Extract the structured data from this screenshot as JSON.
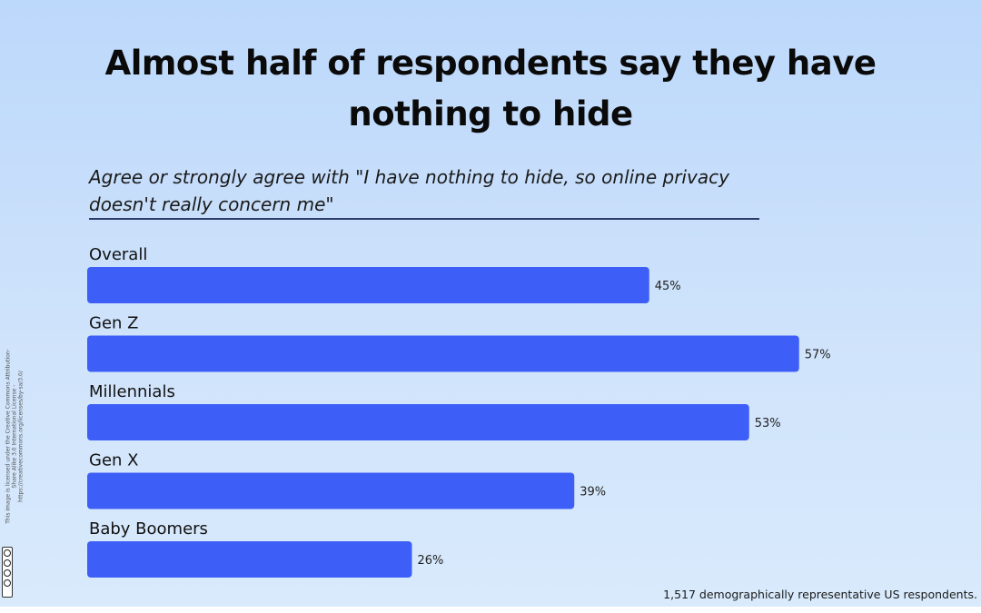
{
  "chart_data": {
    "type": "bar",
    "orientation": "horizontal",
    "title": "Almost half of respondents say they have nothing to hide",
    "subtitle": "Agree or strongly agree with \"I have nothing to hide, so online privacy doesn't really concern me\"",
    "categories": [
      "Overall",
      "Gen Z",
      "Millennials",
      "Gen X",
      "Baby Boomers"
    ],
    "values": [
      45,
      57,
      53,
      39,
      26
    ],
    "value_labels": [
      "45%",
      "57%",
      "53%",
      "39%",
      "26%"
    ],
    "xlim": [
      0,
      100
    ],
    "grid": false,
    "legend": "none",
    "bar_color": "#3d5ff7"
  },
  "footnote": "1,517 demographically representative US respondents.",
  "license_text": "This image is licensed under the Creative Commons Attribution-Share Alike 3.0 International License - https://creativecommons.org/licenses/by-sa/3.0/",
  "license_badge_icon": "creative-commons-icon"
}
